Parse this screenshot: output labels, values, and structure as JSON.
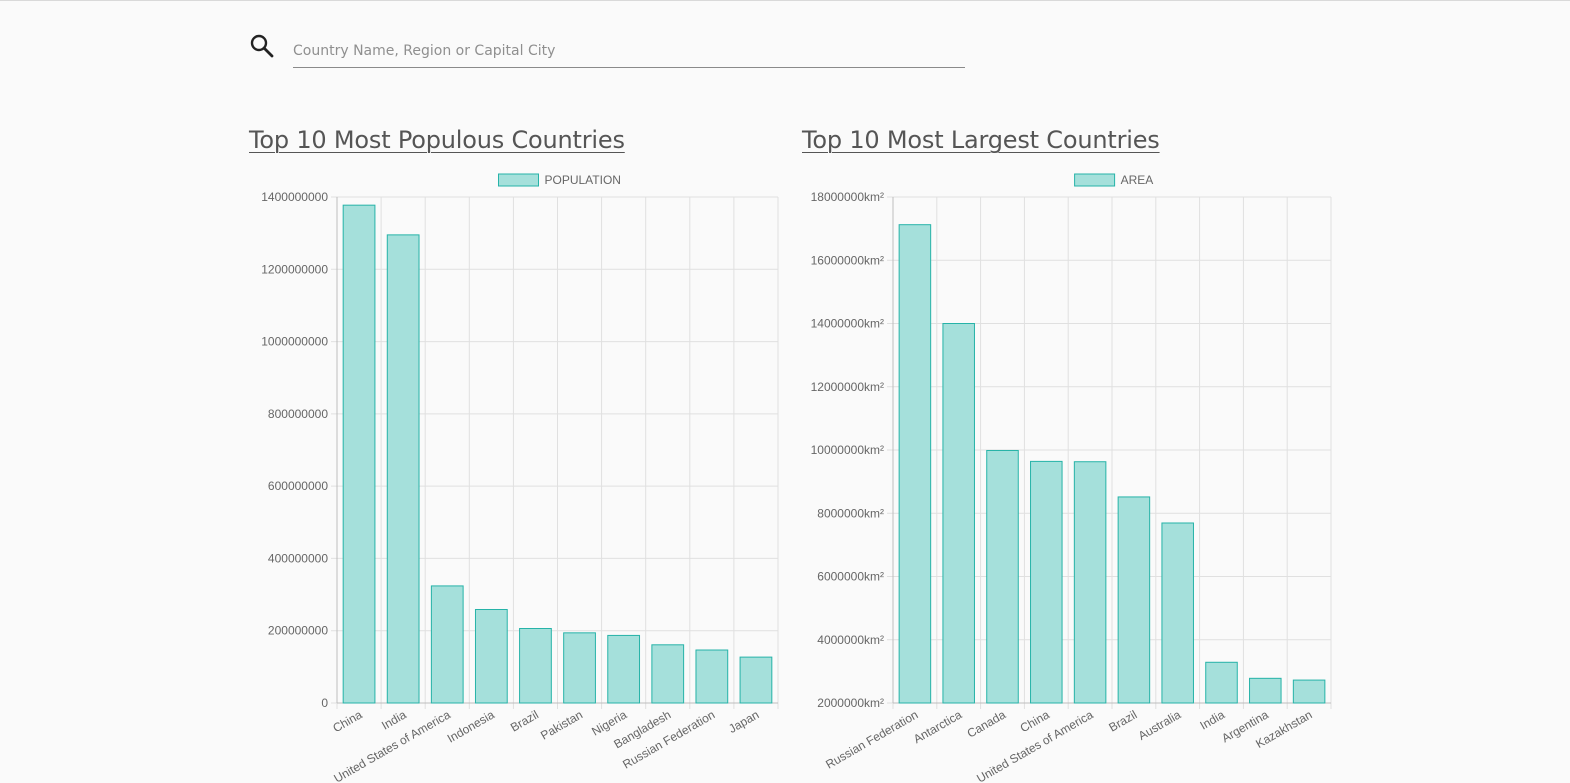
{
  "search": {
    "placeholder": "Country Name, Region or Capital City",
    "icon": "search-icon"
  },
  "colors": {
    "bar_fill": "#a5e0db",
    "bar_border": "#26b3a8",
    "grid": "#e0e0e0"
  },
  "chart_data": [
    {
      "type": "bar",
      "title": "Top 10 Most Populous Countries",
      "legend": "POPULATION",
      "legend_position": "top",
      "grid": true,
      "categories": [
        "China",
        "India",
        "United States of America",
        "Indonesia",
        "Brazil",
        "Pakistan",
        "Nigeria",
        "Bangladesh",
        "Russian Federation",
        "Japan"
      ],
      "series": [
        {
          "name": "POPULATION",
          "values": [
            1377422166,
            1295210000,
            323947000,
            258705000,
            206135893,
            194125062,
            186988000,
            161006790,
            146599183,
            126960000
          ]
        }
      ],
      "ylim": [
        0,
        1400000000
      ],
      "yticks": [
        "0",
        "200000000",
        "400000000",
        "600000000",
        "800000000",
        "1000000000",
        "1200000000",
        "1400000000"
      ]
    },
    {
      "type": "bar",
      "title": "Top 10 Most Largest Countries",
      "legend": "AREA",
      "legend_position": "top",
      "grid": true,
      "categories": [
        "Russian Federation",
        "Antarctica",
        "Canada",
        "China",
        "United States of America",
        "Brazil",
        "Australia",
        "India",
        "Argentina",
        "Kazakhstan"
      ],
      "series": [
        {
          "name": "AREA",
          "values": [
            17124442,
            14000000,
            9984670,
            9640011,
            9629091,
            8515767,
            7692024,
            3287590,
            2780400,
            2724900
          ]
        }
      ],
      "ylim": [
        2000000,
        18000000
      ],
      "yticks": [
        "2000000km²",
        "4000000km²",
        "6000000km²",
        "8000000km²",
        "10000000km²",
        "12000000km²",
        "14000000km²",
        "16000000km²",
        "18000000km²"
      ]
    }
  ]
}
